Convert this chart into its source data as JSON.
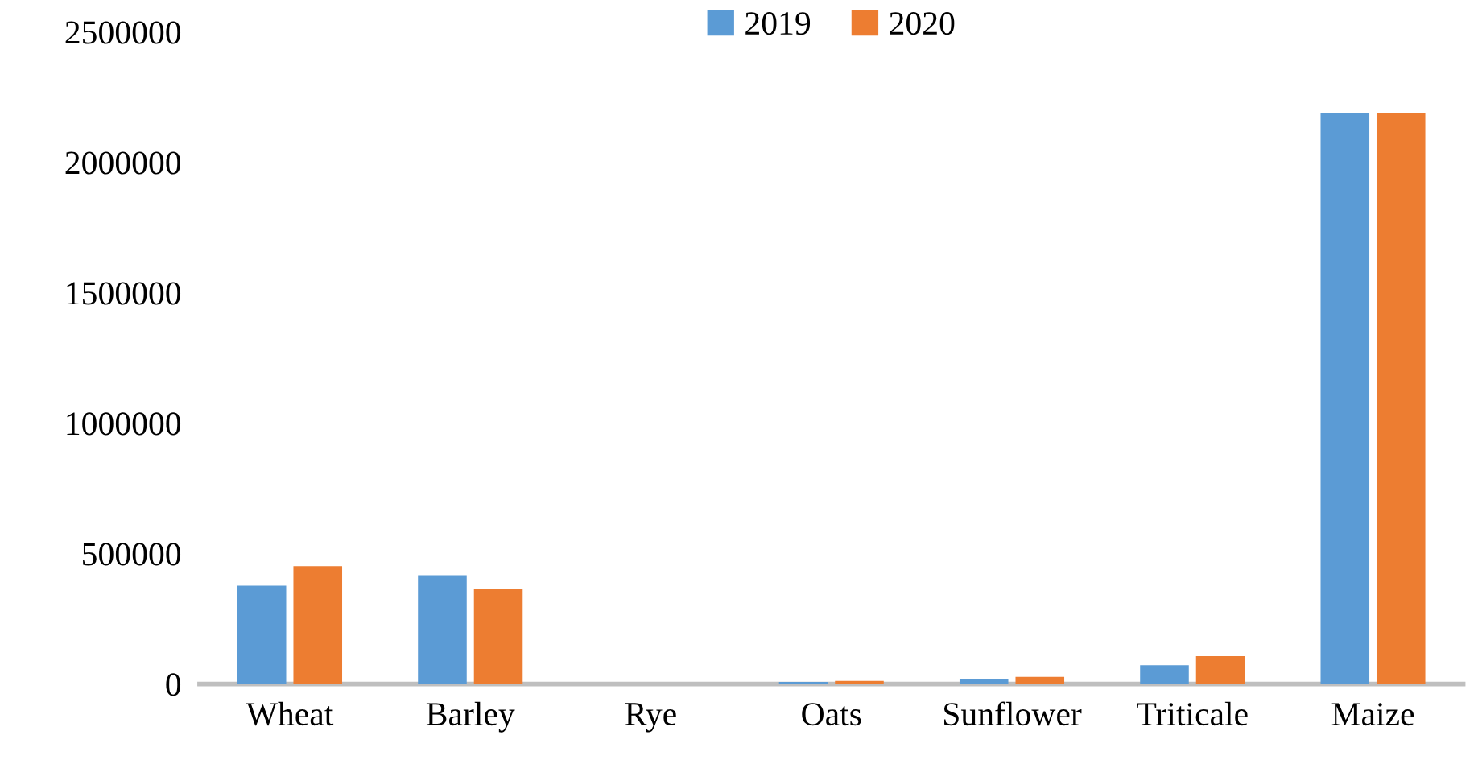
{
  "chart_data": {
    "type": "bar",
    "categories": [
      "Wheat",
      "Barley",
      "Rye",
      "Oats",
      "Sunflower",
      "Triticale",
      "Maize"
    ],
    "series": [
      {
        "name": "2019",
        "color": "#5b9bd5",
        "values": [
          377000,
          417000,
          null,
          8000,
          20000,
          72000,
          2190000
        ]
      },
      {
        "name": "2020",
        "color": "#ed7d31",
        "values": [
          452000,
          365000,
          null,
          12000,
          27000,
          107000,
          2190000
        ]
      }
    ],
    "ylim": [
      0,
      2500000
    ],
    "yticks": [
      0,
      500000,
      1000000,
      1500000,
      2000000,
      2500000
    ],
    "grid": false,
    "legend": "top"
  }
}
